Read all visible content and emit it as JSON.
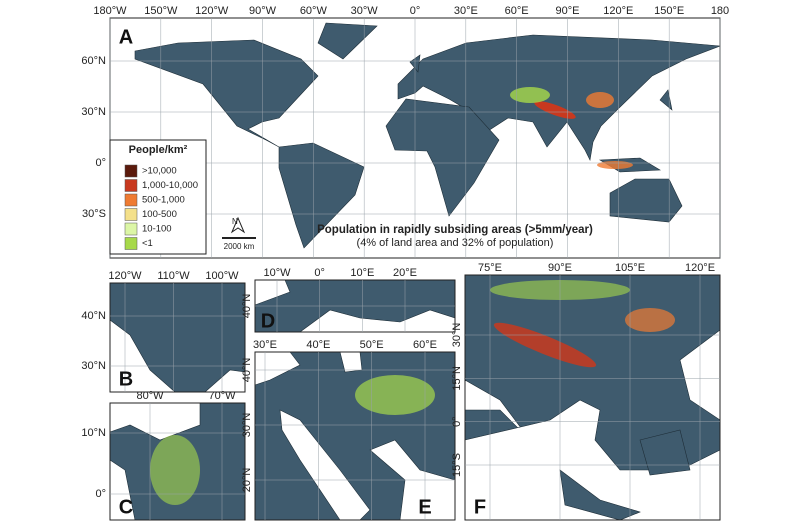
{
  "panels": [
    {
      "label": "A",
      "lon_labels": [
        "180°W",
        "150°W",
        "120°W",
        "90°W",
        "60°W",
        "30°W",
        "0°",
        "30°E",
        "60°E",
        "90°E",
        "120°E",
        "150°E",
        "180"
      ],
      "lat_labels": [
        "60°N",
        "30°N",
        "0°",
        "30°S"
      ]
    },
    {
      "label": "B",
      "lon_labels": [
        "120°W",
        "110°W",
        "100°W"
      ],
      "lat_labels": [
        "40°N",
        "30°N"
      ]
    },
    {
      "label": "C",
      "lon_labels": [
        "80°W",
        "70°W"
      ],
      "lat_labels": [
        "10°N",
        "0°"
      ]
    },
    {
      "label": "D",
      "lon_labels": [
        "10°W",
        "0°",
        "10°E",
        "20°E"
      ],
      "lat_labels": [
        "40°N"
      ]
    },
    {
      "label": "E",
      "lon_labels": [
        "30°E",
        "40°E",
        "50°E",
        "60°E"
      ],
      "lat_labels": [
        "40°N",
        "30°N",
        "20°N"
      ]
    },
    {
      "label": "F",
      "lon_labels": [
        "75°E",
        "90°E",
        "105°E",
        "120°E"
      ],
      "lat_labels": [
        "30°N",
        "15°N",
        "0°",
        "15°S"
      ]
    }
  ],
  "legend": {
    "title": "People/km²",
    "items": [
      {
        "label": ">10,000",
        "color": "#5b1a0c"
      },
      {
        "label": "1,000-10,000",
        "color": "#c8391f"
      },
      {
        "label": "500-1,000",
        "color": "#ef7b32"
      },
      {
        "label": "100-500",
        "color": "#f4e08a"
      },
      {
        "label": "10-100",
        "color": "#dcf6a6"
      },
      {
        "label": "<1",
        "color": "#a7d94a"
      }
    ]
  },
  "annotation": {
    "title": "Population in rapidly subsiding areas (>5mm/year)",
    "subtitle": "(4% of land area and 32% of population)"
  },
  "scale_bar": {
    "label": "2000 km",
    "north": "N"
  }
}
